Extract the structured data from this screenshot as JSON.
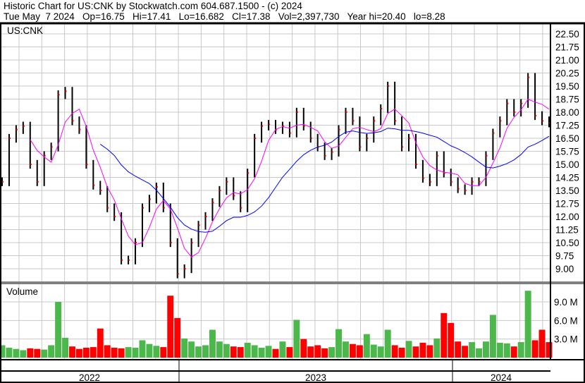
{
  "header": {
    "line1": "Historic Chart for US:CNK by Stockwatch.com 604.687.1500 - (c) 2024",
    "line2": "Tue May  7 2024   Op=16.75   Hi=17.41   Lo=16.682   Cl=17.38   Vol=2,397,730   Year hi=20.40   lo=8.28"
  },
  "chart_data": {
    "type": "line",
    "symbol_label": "US:CNK",
    "volume_label": "Volume",
    "price_ticks": [
      "22.50",
      "21.75",
      "21.00",
      "20.25",
      "19.50",
      "18.75",
      "18.00",
      "17.25",
      "16.50",
      "15.75",
      "15.00",
      "14.25",
      "13.50",
      "12.75",
      "12.00",
      "11.25",
      "10.50",
      "9.75",
      "9.00"
    ],
    "ylim": [
      9.0,
      22.5
    ],
    "volume_ticks": [
      "9.0 M",
      "6.0 M",
      "3.0 M"
    ],
    "volume_ylim_millions": [
      0,
      9.0
    ],
    "years": [
      "2022",
      "2023",
      "2024"
    ],
    "colors": {
      "up": "#4cb84c",
      "down": "#ff0000",
      "short_ma": "#ff00ff",
      "long_ma": "#0000ff",
      "grid": "#c8c8c8"
    },
    "closes": [
      14.0,
      16.5,
      17.0,
      17.2,
      15.0,
      14.0,
      15.5,
      16.0,
      19.0,
      19.2,
      17.5,
      17.0,
      15.0,
      13.8,
      13.5,
      12.5,
      12.0,
      9.5,
      9.5,
      10.5,
      12.5,
      13.0,
      13.7,
      12.5,
      10.5,
      8.7,
      9.0,
      10.5,
      11.5,
      12.0,
      12.8,
      13.5,
      14.0,
      13.2,
      12.5,
      14.5,
      16.5,
      17.2,
      17.3,
      17.0,
      17.2,
      16.8,
      18.0,
      17.2,
      16.5,
      16.0,
      15.5,
      15.7,
      17.0,
      18.0,
      17.5,
      16.0,
      16.5,
      17.5,
      18.2,
      19.5,
      17.5,
      16.0,
      16.5,
      15.0,
      14.2,
      14.0,
      15.5,
      14.5,
      14.0,
      13.6,
      13.5,
      14.0,
      14.0,
      15.5,
      16.8,
      17.5,
      18.5,
      18.0,
      18.5,
      20.0,
      17.8,
      17.5,
      17.38
    ],
    "volume_millions": [
      2.0,
      1.6,
      1.4,
      1.2,
      1.5,
      1.4,
      1.3,
      2.0,
      9.0,
      3.2,
      1.8,
      1.4,
      1.6,
      1.7,
      4.7,
      2.0,
      1.6,
      1.5,
      1.7,
      1.6,
      2.8,
      2.2,
      1.9,
      1.7,
      10.0,
      6.4,
      3.1,
      2.6,
      1.8,
      2.0,
      4.5,
      2.6,
      2.2,
      1.8,
      1.7,
      2.4,
      2.0,
      1.6,
      1.9,
      1.4,
      2.6,
      1.7,
      6.1,
      3.0,
      1.8,
      2.0,
      1.5,
      1.7,
      4.6,
      2.6,
      2.2,
      2.0,
      3.8,
      2.1,
      1.8,
      4.5,
      2.0,
      1.6,
      2.7,
      1.8,
      2.4,
      2.0,
      3.1,
      7.2,
      5.6,
      2.6,
      1.9,
      2.5,
      1.5,
      2.6,
      6.9,
      2.4,
      2.3,
      1.8,
      2.5,
      10.8,
      2.8,
      4.5,
      2.5
    ]
  }
}
